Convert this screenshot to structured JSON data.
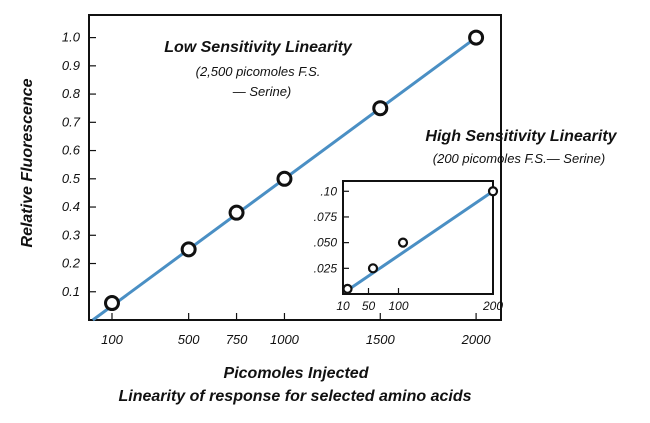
{
  "colors": {
    "line": "#4a8fc4",
    "frame": "#111111",
    "marker_fill": "#ffffff"
  },
  "chart_data": [
    {
      "type": "line",
      "name": "low-sensitivity",
      "title": "Low Sensitivity Linearity",
      "subtitle_lines": [
        "(2,500 picomoles F.S.",
        "— Serine)"
      ],
      "xlabel": "Picomoles Injected",
      "caption": "Linearity of response for selected amino acids",
      "ylabel": "Relative Fluorescence",
      "xlim": [
        -20,
        2130
      ],
      "ylim": [
        0,
        1.08
      ],
      "x_ticks": [
        100,
        500,
        750,
        1000,
        1500,
        2000
      ],
      "x_tick_labels": [
        "100",
        "500",
        "750",
        "1000",
        "1500",
        "2000"
      ],
      "y_ticks": [
        0.1,
        0.2,
        0.3,
        0.4,
        0.5,
        0.6,
        0.7,
        0.8,
        0.9,
        1.0
      ],
      "y_tick_labels": [
        "0.1",
        "0.2",
        "0.3",
        "0.4",
        "0.5",
        "0.6",
        "0.7",
        "0.8",
        "0.9",
        "1.0"
      ],
      "fit_line": {
        "x": [
          0,
          2000
        ],
        "y": [
          0,
          1.0
        ]
      },
      "points": {
        "x": [
          100,
          500,
          750,
          1000,
          1500,
          2000
        ],
        "y": [
          0.06,
          0.25,
          0.38,
          0.5,
          0.75,
          1.0
        ]
      }
    },
    {
      "type": "line",
      "name": "high-sensitivity",
      "title": "High Sensitivity Linearity",
      "subtitle": "(200 picomoles F.S.— Serine)",
      "xlim": [
        0,
        200
      ],
      "ylim": [
        0,
        0.11
      ],
      "x_ticks": [
        10,
        50,
        100,
        200
      ],
      "x_tick_labels": [
        "10",
        "50",
        "100",
        "200"
      ],
      "x_tick_positions": [
        0.0,
        0.17,
        0.37,
        1.0
      ],
      "y_ticks": [
        0.025,
        0.05,
        0.075,
        0.1
      ],
      "y_tick_labels": [
        ".025",
        ".050",
        ".075",
        ".10"
      ],
      "fit_line": {
        "x": [
          10,
          200
        ],
        "y": [
          0.005,
          0.1
        ]
      },
      "points": {
        "x_positions": [
          0.03,
          0.2,
          0.4,
          1.0
        ],
        "x": [
          10,
          50,
          100,
          200
        ],
        "y": [
          0.005,
          0.025,
          0.05,
          0.1
        ]
      }
    }
  ]
}
